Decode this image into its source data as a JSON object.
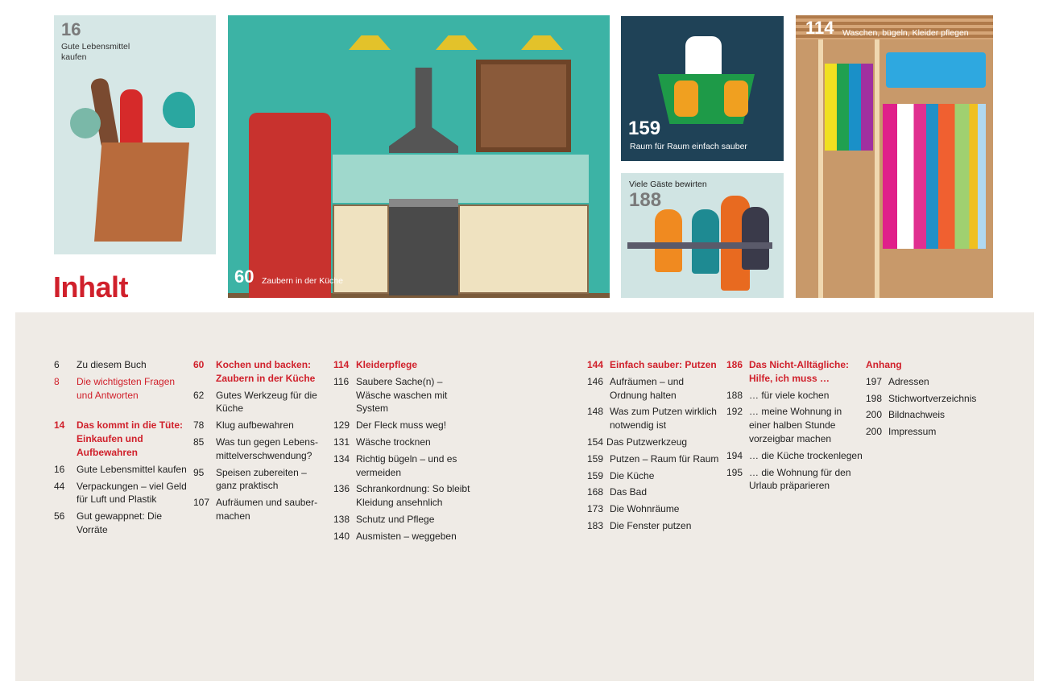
{
  "title": "Inhalt",
  "tiles": {
    "groceries": {
      "page": "16",
      "caption": "Gute Lebensmittel kaufen"
    },
    "kitchen": {
      "page": "60",
      "caption": "Zaubern in der Küche"
    },
    "cleaning": {
      "page": "159",
      "caption": "Raum für Raum einfach sauber"
    },
    "guests": {
      "page": "188",
      "caption": "Viele Gäste bewirten"
    },
    "wardrobe": {
      "page": "114",
      "caption": "Waschen, bügeln, Kleider pflegen"
    }
  },
  "colors": {
    "accent": "#d0202b",
    "panel": "#efebe6"
  },
  "toc": [
    [
      {
        "page": "6",
        "title": "Zu diesem Buch"
      },
      {
        "page": "8",
        "title": "Die wichtigsten Fragen und Antworten",
        "style": "red"
      },
      {
        "page": "14",
        "title": "Das kommt in die Tüte: Einkaufen und Aufbewahren",
        "style": "heading",
        "gap": true
      },
      {
        "page": "16",
        "title": "Gute Lebensmittel kaufen"
      },
      {
        "page": "44",
        "title": "Verpackungen – viel Geld für Luft und Plastik"
      },
      {
        "page": "56",
        "title": "Gut gewappnet: Die Vorräte"
      }
    ],
    [
      {
        "page": "60",
        "title": "Kochen und backen: Zaubern in der Küche",
        "style": "heading"
      },
      {
        "page": "62",
        "title": "Gutes Werkzeug für die Küche"
      },
      {
        "page": "78",
        "title": "Klug aufbewahren"
      },
      {
        "page": "85",
        "title": "Was tun gegen Lebens­mittelverschwendung?"
      },
      {
        "page": "95",
        "title": "Speisen zubereiten – ganz praktisch"
      },
      {
        "page": "107",
        "title": "Aufräumen und sauber­machen"
      }
    ],
    [
      {
        "page": "114",
        "title": "Kleiderpflege",
        "style": "heading"
      },
      {
        "page": "116",
        "title": "Saubere Sache(n) – Wäsche waschen mit System"
      },
      {
        "page": "129",
        "title": "Der Fleck muss weg!"
      },
      {
        "page": "131",
        "title": "Wäsche trocknen"
      },
      {
        "page": "134",
        "title": "Richtig bügeln – und es vermeiden"
      },
      {
        "page": "136",
        "title": "Schrankordnung: So bleibt Kleidung ansehnlich"
      },
      {
        "page": "138",
        "title": "Schutz und Pflege"
      },
      {
        "page": "140",
        "title": "Ausmisten – weggeben"
      }
    ],
    [
      {
        "page": "144",
        "title": "Einfach sauber: Putzen",
        "style": "heading"
      },
      {
        "page": "146",
        "title": "Aufräumen – und Ordnung halten"
      },
      {
        "page": "148",
        "title": "Was zum Putzen wirklich notwendig ist"
      },
      {
        "page": "154",
        "title": "Das Putzwerkzeug",
        "tight": true
      },
      {
        "page": "159",
        "title": "Putzen – Raum für Raum"
      },
      {
        "page": "159",
        "title": "Die Küche"
      },
      {
        "page": "168",
        "title": "Das Bad"
      },
      {
        "page": "173",
        "title": "Die Wohnräume"
      },
      {
        "page": "183",
        "title": "Die Fenster putzen"
      }
    ],
    [
      {
        "page": "186",
        "title": "Das Nicht-Alltägliche: Hilfe, ich muss …",
        "style": "heading"
      },
      {
        "page": "188",
        "title": "… für viele kochen"
      },
      {
        "page": "192",
        "title": "… meine Wohnung in einer halben Stunde vorzeigbar machen"
      },
      {
        "page": "194",
        "title": "… die Küche trocken­legen"
      },
      {
        "page": "195",
        "title": "… die Wohnung für den Urlaub präparieren"
      }
    ],
    [
      {
        "page": "",
        "title": "Anhang",
        "style": "heading"
      },
      {
        "page": "197",
        "title": "Adressen"
      },
      {
        "page": "198",
        "title": "Stichwortverzeichnis"
      },
      {
        "page": "200",
        "title": "Bildnachweis"
      },
      {
        "page": "200",
        "title": "Impressum"
      }
    ]
  ]
}
